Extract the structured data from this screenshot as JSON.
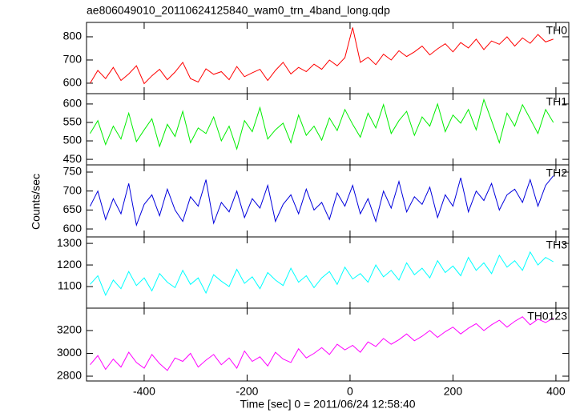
{
  "title": "ae806049010_20110624125840_wam0_trn_4band_long.qdp",
  "y_label": "Counts/sec",
  "chart_data": [
    {
      "type": "line",
      "xlim": [
        -512,
        425
      ],
      "ylim": [
        555,
        862
      ],
      "yticks": [
        600,
        700,
        800
      ],
      "x": [
        -505,
        -490,
        -475,
        -460,
        -445,
        -430,
        -415,
        -400,
        -385,
        -370,
        -355,
        -340,
        -325,
        -310,
        -295,
        -280,
        -265,
        -250,
        -235,
        -220,
        -205,
        -190,
        -175,
        -160,
        -145,
        -130,
        -115,
        -100,
        -85,
        -70,
        -55,
        -40,
        -25,
        -10,
        5,
        20,
        35,
        50,
        65,
        80,
        95,
        110,
        125,
        140,
        155,
        170,
        185,
        200,
        215,
        230,
        245,
        260,
        275,
        290,
        305,
        320,
        335,
        350,
        365,
        380,
        395
      ],
      "series": [
        {
          "name": "TH0",
          "color": "#ff0000",
          "values": [
            600,
            655,
            620,
            668,
            612,
            640,
            675,
            598,
            632,
            660,
            615,
            648,
            690,
            620,
            605,
            662,
            638,
            650,
            615,
            672,
            628,
            645,
            660,
            612,
            655,
            690,
            640,
            668,
            650,
            682,
            660,
            700,
            675,
            710,
            840,
            690,
            712,
            680,
            725,
            700,
            740,
            715,
            735,
            760,
            722,
            748,
            770,
            735,
            775,
            752,
            790,
            745,
            782,
            768,
            800,
            760,
            795,
            772,
            810,
            778,
            790
          ]
        }
      ]
    },
    {
      "type": "line",
      "xlim": [
        -512,
        425
      ],
      "ylim": [
        435,
        628
      ],
      "yticks": [
        450,
        500,
        550,
        600
      ],
      "x": [
        -505,
        -490,
        -475,
        -460,
        -445,
        -430,
        -415,
        -400,
        -385,
        -370,
        -355,
        -340,
        -325,
        -310,
        -295,
        -280,
        -265,
        -250,
        -235,
        -220,
        -205,
        -190,
        -175,
        -160,
        -145,
        -130,
        -115,
        -100,
        -85,
        -70,
        -55,
        -40,
        -25,
        -10,
        5,
        20,
        35,
        50,
        65,
        80,
        95,
        110,
        125,
        140,
        155,
        170,
        185,
        200,
        215,
        230,
        245,
        260,
        275,
        290,
        305,
        320,
        335,
        350,
        365,
        380,
        395
      ],
      "series": [
        {
          "name": "TH1",
          "color": "#00ee00",
          "values": [
            520,
            555,
            490,
            540,
            505,
            575,
            498,
            530,
            560,
            485,
            545,
            512,
            580,
            495,
            535,
            520,
            565,
            500,
            540,
            478,
            555,
            525,
            590,
            505,
            530,
            548,
            495,
            570,
            515,
            540,
            502,
            562,
            528,
            585,
            545,
            510,
            575,
            535,
            598,
            520,
            555,
            580,
            515,
            565,
            540,
            600,
            525,
            570,
            548,
            585,
            530,
            612,
            555,
            495,
            575,
            540,
            598,
            560,
            520,
            585,
            550
          ]
        }
      ]
    },
    {
      "type": "line",
      "xlim": [
        -512,
        425
      ],
      "ylim": [
        579,
        769
      ],
      "yticks": [
        600,
        650,
        700,
        750
      ],
      "x": [
        -505,
        -490,
        -475,
        -460,
        -445,
        -430,
        -415,
        -400,
        -385,
        -370,
        -355,
        -340,
        -325,
        -310,
        -295,
        -280,
        -265,
        -250,
        -235,
        -220,
        -205,
        -190,
        -175,
        -160,
        -145,
        -130,
        -115,
        -100,
        -85,
        -70,
        -55,
        -40,
        -25,
        -10,
        5,
        20,
        35,
        50,
        65,
        80,
        95,
        110,
        125,
        140,
        155,
        170,
        185,
        200,
        215,
        230,
        245,
        260,
        275,
        290,
        305,
        320,
        335,
        350,
        365,
        380,
        395
      ],
      "series": [
        {
          "name": "TH2",
          "color": "#0000dd",
          "values": [
            660,
            700,
            625,
            680,
            640,
            720,
            610,
            665,
            690,
            635,
            705,
            650,
            620,
            685,
            660,
            730,
            615,
            670,
            645,
            700,
            630,
            680,
            655,
            715,
            620,
            665,
            690,
            640,
            705,
            650,
            670,
            625,
            695,
            660,
            715,
            640,
            680,
            620,
            700,
            655,
            725,
            645,
            685,
            665,
            710,
            630,
            690,
            660,
            735,
            645,
            700,
            675,
            720,
            650,
            690,
            705,
            670,
            730,
            660,
            715,
            740
          ]
        }
      ]
    },
    {
      "type": "line",
      "xlim": [
        -512,
        425
      ],
      "ylim": [
        1000,
        1330
      ],
      "yticks": [
        1100,
        1200,
        1300
      ],
      "x": [
        -505,
        -490,
        -475,
        -460,
        -445,
        -430,
        -415,
        -400,
        -385,
        -370,
        -355,
        -340,
        -325,
        -310,
        -295,
        -280,
        -265,
        -250,
        -235,
        -220,
        -205,
        -190,
        -175,
        -160,
        -145,
        -130,
        -115,
        -100,
        -85,
        -70,
        -55,
        -40,
        -25,
        -10,
        5,
        20,
        35,
        50,
        65,
        80,
        95,
        110,
        125,
        140,
        155,
        170,
        185,
        200,
        215,
        230,
        245,
        260,
        275,
        290,
        305,
        320,
        335,
        350,
        365,
        380,
        395
      ],
      "series": [
        {
          "name": "TH3",
          "color": "#00ffff",
          "values": [
            1110,
            1150,
            1060,
            1130,
            1090,
            1170,
            1105,
            1140,
            1080,
            1160,
            1120,
            1095,
            1175,
            1110,
            1140,
            1070,
            1155,
            1125,
            1100,
            1180,
            1115,
            1145,
            1090,
            1165,
            1130,
            1105,
            1185,
            1120,
            1150,
            1095,
            1140,
            1170,
            1110,
            1190,
            1135,
            1160,
            1120,
            1200,
            1145,
            1175,
            1130,
            1210,
            1155,
            1185,
            1140,
            1220,
            1165,
            1195,
            1150,
            1235,
            1175,
            1210,
            1160,
            1245,
            1190,
            1220,
            1175,
            1260,
            1200,
            1235,
            1215
          ]
        }
      ]
    },
    {
      "type": "line",
      "xlim": [
        -512,
        425
      ],
      "ylim": [
        2758,
        3396
      ],
      "yticks": [
        2800,
        3000,
        3200
      ],
      "xticks": [
        -400,
        -200,
        0,
        200,
        400
      ],
      "x_label": "Time [sec] 0 = 2011/06/24 12:58:40",
      "x": [
        -505,
        -490,
        -475,
        -460,
        -445,
        -430,
        -415,
        -400,
        -385,
        -370,
        -355,
        -340,
        -325,
        -310,
        -295,
        -280,
        -265,
        -250,
        -235,
        -220,
        -205,
        -190,
        -175,
        -160,
        -145,
        -130,
        -115,
        -100,
        -85,
        -70,
        -55,
        -40,
        -25,
        -10,
        5,
        20,
        35,
        50,
        65,
        80,
        95,
        110,
        125,
        140,
        155,
        170,
        185,
        200,
        215,
        230,
        245,
        260,
        275,
        290,
        305,
        320,
        335,
        350,
        365,
        380,
        395
      ],
      "series": [
        {
          "name": "TH0123",
          "color": "#ff00ff",
          "values": [
            2900,
            2980,
            2860,
            2950,
            2880,
            3010,
            2920,
            2870,
            2990,
            2910,
            2850,
            2960,
            2930,
            3000,
            2880,
            2940,
            2990,
            2900,
            2960,
            2870,
            3020,
            2930,
            2970,
            2890,
            3010,
            2950,
            2920,
            3040,
            2960,
            3000,
            3050,
            2990,
            3080,
            3030,
            3070,
            3010,
            3100,
            3060,
            3130,
            3080,
            3120,
            3170,
            3110,
            3150,
            3200,
            3140,
            3190,
            3230,
            3170,
            3220,
            3260,
            3200,
            3250,
            3290,
            3230,
            3280,
            3320,
            3250,
            3300,
            3270,
            3310
          ]
        }
      ]
    }
  ]
}
